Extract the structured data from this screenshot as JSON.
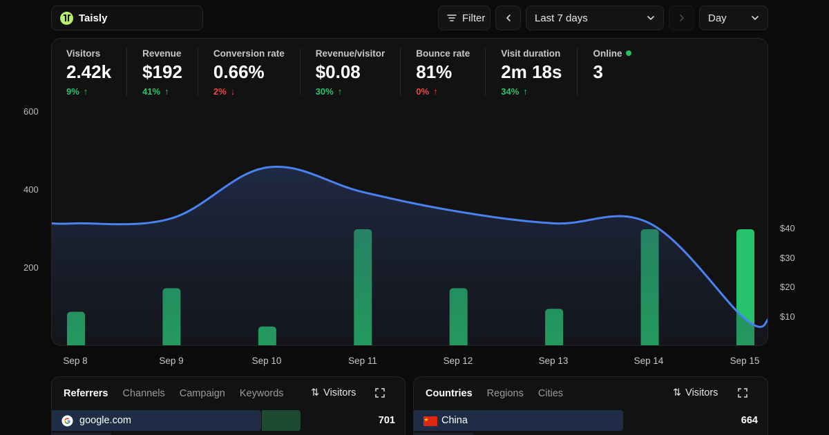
{
  "brand": {
    "name": "Taisly"
  },
  "toolbar": {
    "filter_label": "Filter",
    "range_label": "Last 7 days",
    "granularity_label": "Day"
  },
  "metrics": [
    {
      "label": "Visitors",
      "value": "2.42k",
      "delta": "9%",
      "trend": "up"
    },
    {
      "label": "Revenue",
      "value": "$192",
      "delta": "41%",
      "trend": "up"
    },
    {
      "label": "Conversion rate",
      "value": "0.66%",
      "delta": "2%",
      "trend": "down"
    },
    {
      "label": "Revenue/visitor",
      "value": "$0.08",
      "delta": "30%",
      "trend": "up"
    },
    {
      "label": "Bounce rate",
      "value": "81%",
      "delta": "0%",
      "trend": "down"
    },
    {
      "label": "Visit duration",
      "value": "2m 18s",
      "delta": "34%",
      "trend": "up"
    },
    {
      "label": "Online",
      "value": "3",
      "delta": "",
      "trend": ""
    }
  ],
  "chart_data": {
    "type": "line",
    "categories": [
      "Sep 8",
      "Sep 9",
      "Sep 10",
      "Sep 11",
      "Sep 12",
      "Sep 13",
      "Sep 14",
      "Sep 15"
    ],
    "y_left_ticks": [
      "200",
      "400",
      "600"
    ],
    "y_right_ticks": [
      "$10",
      "$20",
      "$30",
      "$40"
    ],
    "ylim_left": [
      0,
      600
    ],
    "ylim_right": [
      0,
      40
    ],
    "series": [
      {
        "name": "Visitors",
        "type": "area",
        "color": "#4a82f0",
        "values": [
          315,
          328,
          458,
          395,
          345,
          315,
          315,
          70
        ]
      },
      {
        "name": "Revenue",
        "type": "bar",
        "color": "#27c26c",
        "values": [
          12,
          20,
          7,
          40,
          20,
          13,
          40,
          40
        ]
      }
    ]
  },
  "referrers": {
    "tabs": [
      "Referrers",
      "Channels",
      "Campaign",
      "Keywords"
    ],
    "sort_label": "Visitors",
    "rows": [
      {
        "name": "google.com",
        "value": "701",
        "share": 0.59,
        "secondary_share": 0.11
      }
    ]
  },
  "countries": {
    "tabs": [
      "Countries",
      "Regions",
      "Cities"
    ],
    "sort_label": "Visitors",
    "rows": [
      {
        "name": "China",
        "value": "664",
        "share": 0.59
      }
    ]
  }
}
